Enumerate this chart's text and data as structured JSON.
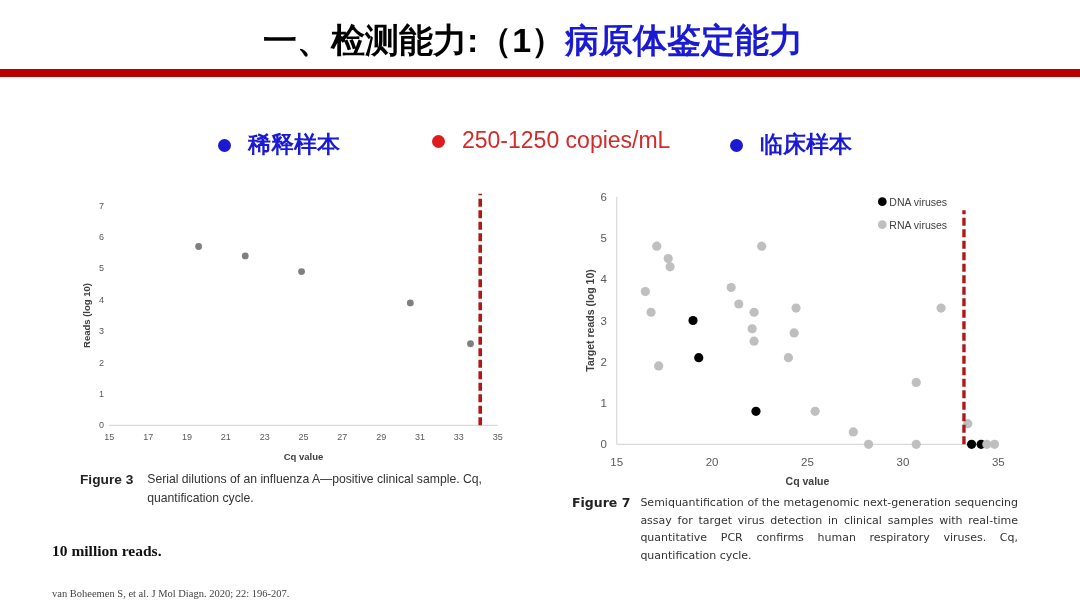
{
  "chart_data": [
    {
      "type": "other",
      "title": "一、检测能力:（1）",
      "subtitle": "病原体鉴定能力",
      "annotations": [
        "250-1250 copies/mL"
      ]
    },
    {
      "type": "scatter",
      "title": "稀释样本",
      "xlabel": "Cq value",
      "ylabel": "Reads (log 10)",
      "x": [
        19.6,
        22.0,
        24.9,
        30.5,
        33.6
      ],
      "values": [
        5.7,
        5.4,
        4.9,
        3.9,
        2.6
      ],
      "color": "#7f7f7f",
      "marker": "circle",
      "xlim": [
        15,
        35
      ],
      "ylim": [
        0,
        7
      ],
      "xticks": [
        15,
        17,
        19,
        21,
        23,
        25,
        27,
        29,
        31,
        33,
        35
      ],
      "yticks": [
        0,
        1,
        2,
        3,
        4,
        5,
        6,
        7
      ],
      "ref_lines": [
        {
          "axis": "x",
          "value": 34.1,
          "color": "#b01818",
          "line_style": "dashed"
        }
      ],
      "annotations": [
        "Figure 3",
        "Serial dilutions of an influenza A—positive clinical sample. Cq, quantification cycle."
      ]
    },
    {
      "type": "scatter",
      "title": "临床样本",
      "xlabel": "Cq value",
      "ylabel": "Target reads (log 10)",
      "marker": "circle",
      "legend": "top right",
      "xlim": [
        15,
        35
      ],
      "ylim": [
        0,
        6
      ],
      "xticks": [
        15,
        20,
        25,
        30,
        35
      ],
      "yticks": [
        0,
        1,
        2,
        3,
        4,
        5,
        6
      ],
      "series": [
        {
          "name": "DNA viruses",
          "color": "#000000",
          "x": [
            19.0,
            19.3,
            22.3,
            33.6,
            34.1
          ],
          "values": [
            3.0,
            2.1,
            0.8,
            0,
            0
          ]
        },
        {
          "name": "RNA viruses",
          "color": "#bfbfbf",
          "x": [
            17.1,
            17.7,
            17.8,
            16.5,
            16.8,
            17.2,
            22.6,
            21.0,
            21.4,
            22.2,
            22.1,
            22.2,
            24.4,
            24.3,
            24.0,
            25.4,
            27.4,
            28.2,
            30.7,
            30.7,
            32.0,
            33.4,
            34.4,
            34.8
          ],
          "values": [
            4.8,
            4.5,
            4.3,
            3.7,
            3.2,
            1.9,
            4.8,
            3.8,
            3.4,
            3.2,
            2.8,
            2.5,
            3.3,
            2.7,
            2.1,
            0.8,
            0.3,
            0,
            1.5,
            0,
            3.3,
            0.5,
            0,
            0
          ]
        }
      ],
      "ref_lines": [
        {
          "axis": "x",
          "value": 33.2,
          "color": "#b01818",
          "line_style": "dashed"
        }
      ],
      "annotations": [
        "Figure 7",
        "Semiquantification of the metagenomic next-generation sequencing assay for target virus detection in clinical samples with real-time quantitative PCR confirms human respiratory viruses. Cq, quantification cycle."
      ]
    },
    {
      "type": "other",
      "annotations": [
        "10 million reads.",
        "van Boheemen S, et al. J Mol Diagn. 2020; 22: 196-207."
      ]
    }
  ]
}
